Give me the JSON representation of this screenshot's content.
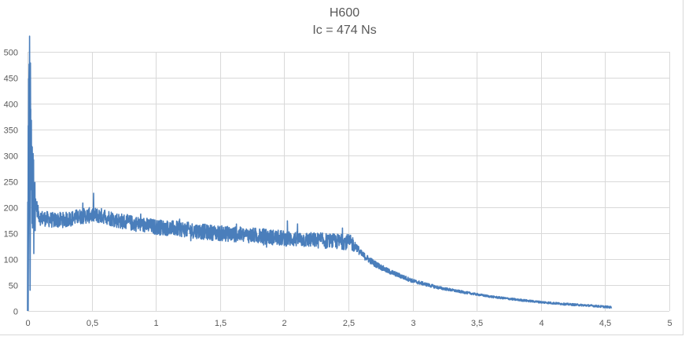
{
  "chart_title_line1": "H600",
  "chart_title_line2": "Ic = 474 Ns",
  "colors": {
    "series": "#4a7ebb",
    "grid": "#d9d9d9",
    "text": "#595959",
    "frame": "#d9d9d9"
  },
  "chart_data": {
    "type": "line",
    "title": "H600",
    "subtitle": "Ic = 474 Ns",
    "xlabel": "",
    "ylabel": "",
    "xlim": [
      0,
      5
    ],
    "ylim": [
      0,
      500
    ],
    "x_ticks": [
      "0",
      "0,5",
      "1",
      "1,5",
      "2",
      "2,5",
      "3",
      "3,5",
      "4",
      "4,5",
      "5"
    ],
    "y_ticks": [
      "0",
      "50",
      "100",
      "150",
      "200",
      "250",
      "300",
      "350",
      "400",
      "450",
      "500"
    ],
    "grid": true,
    "legend": false,
    "series": [
      {
        "name": "H600",
        "color": "#4a7ebb",
        "x": [
          0.0,
          0.01,
          0.02,
          0.03,
          0.05,
          0.08,
          0.1,
          0.2,
          0.3,
          0.4,
          0.5,
          0.6,
          0.7,
          0.8,
          0.9,
          1.0,
          1.2,
          1.4,
          1.5,
          1.6,
          1.8,
          2.0,
          2.2,
          2.4,
          2.5,
          2.55,
          2.6,
          2.7,
          2.8,
          3.0,
          3.2,
          3.4,
          3.6,
          3.8,
          4.0,
          4.2,
          4.4,
          4.55
        ],
        "values": [
          0,
          462,
          390,
          300,
          230,
          190,
          180,
          175,
          176,
          182,
          185,
          183,
          175,
          170,
          166,
          162,
          158,
          152,
          150,
          148,
          145,
          140,
          137,
          134,
          133,
          128,
          110,
          92,
          78,
          58,
          45,
          36,
          28,
          22,
          17,
          13,
          10,
          7
        ],
        "noise_amplitude_mid_section": 15
      }
    ]
  }
}
